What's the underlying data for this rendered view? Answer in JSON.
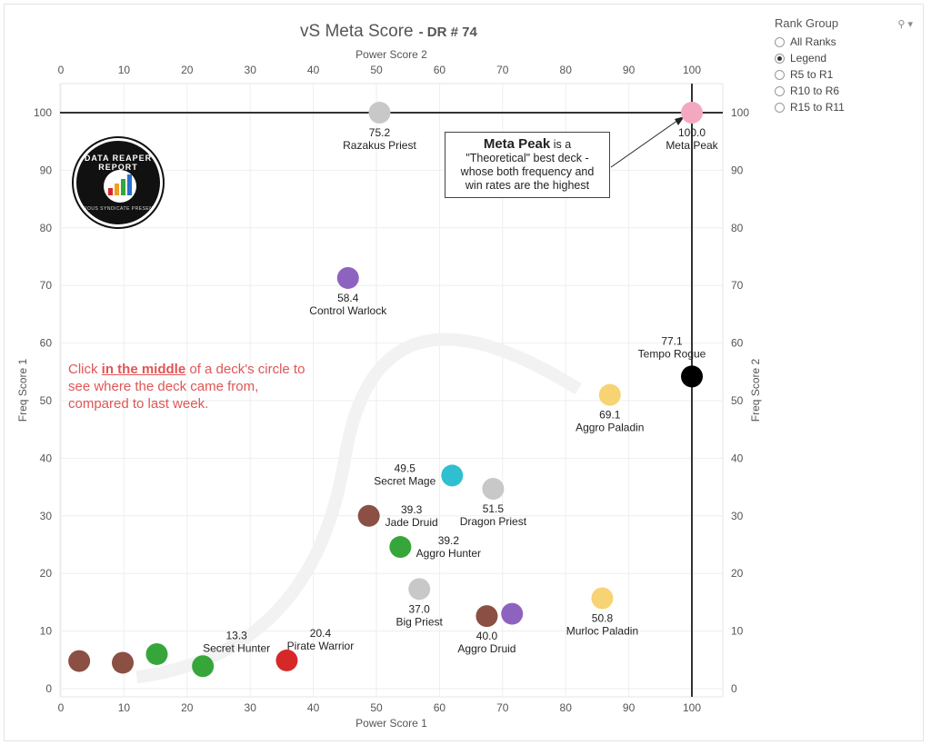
{
  "title": {
    "main": "vS Meta Score",
    "sub": "- DR # 74"
  },
  "filter": {
    "title": "Rank Group",
    "options": [
      {
        "label": "All Ranks",
        "checked": false
      },
      {
        "label": "Legend",
        "checked": true
      },
      {
        "label": "R5 to R1",
        "checked": false
      },
      {
        "label": "R10 to R6",
        "checked": false
      },
      {
        "label": "R15 to R11",
        "checked": false
      }
    ]
  },
  "logo": {
    "top_text": "DATA REAPER REPORT",
    "bottom_text": "VICIOUS SYNDICATE PRESENTS"
  },
  "annotation": {
    "strong": "Meta Peak",
    "text": "is a \"Theoretical\" best deck - whose both frequency and win rates are the highest"
  },
  "instruction": {
    "before": "Click ",
    "emph": "in the middle",
    "after": " of a deck's circle to see where the deck came from, compared to last week."
  },
  "chart_data": {
    "type": "scatter",
    "title": "vS Meta Score - DR # 74",
    "xlabel": "Power Score 1",
    "ylabel": "Freq Score 1",
    "x2label": "Power Score 2",
    "y2label": "Freq Score 2",
    "xlim": [
      -0.5,
      105.5
    ],
    "ylim": [
      -1,
      102
    ],
    "xticks": [
      0,
      10,
      20,
      30,
      40,
      50,
      60,
      70,
      80,
      90,
      100
    ],
    "yticks": [
      0,
      10,
      20,
      30,
      40,
      50,
      60,
      70,
      80,
      90,
      100
    ],
    "grid": true,
    "reference_lines": {
      "x": 100,
      "y": 100
    },
    "points": [
      {
        "name": "Meta Peak",
        "score": "100.0",
        "x": 100,
        "y": 100,
        "color": "#f4a8c0",
        "label_pos": "below"
      },
      {
        "name": "Razakus Priest",
        "score": "75.2",
        "x": 50.5,
        "y": 100,
        "color": "#c8c8c8",
        "label_pos": "below"
      },
      {
        "name": "Control Warlock",
        "score": "58.4",
        "x": 45.5,
        "y": 71.3,
        "color": "#8e63c0",
        "label_pos": "below"
      },
      {
        "name": "Tempo Rogue",
        "score": "77.1",
        "x": 100,
        "y": 54.2,
        "color": "#000000",
        "label_pos": "above"
      },
      {
        "name": "Aggro Paladin",
        "score": "69.1",
        "x": 87,
        "y": 51,
        "color": "#f7d374",
        "label_pos": "below"
      },
      {
        "name": "Secret Mage",
        "score": "49.5",
        "x": 62,
        "y": 37,
        "color": "#2fbfd0",
        "label_pos": "left"
      },
      {
        "name": "Dragon Priest",
        "score": "51.5",
        "x": 68.5,
        "y": 34.7,
        "color": "#c8c8c8",
        "label_pos": "below"
      },
      {
        "name": "Jade Druid",
        "score": "39.3",
        "x": 48.8,
        "y": 30,
        "color": "#8b4f43",
        "label_pos": "below-right"
      },
      {
        "name": "Aggro Hunter",
        "score": "39.2",
        "x": 53.8,
        "y": 24.6,
        "color": "#36a63a",
        "label_pos": "above-right"
      },
      {
        "name": "Big Priest",
        "score": "37.0",
        "x": 56.8,
        "y": 17.3,
        "color": "#c8c8c8",
        "label_pos": "below"
      },
      {
        "name": "Aggro Druid",
        "score": "40.0",
        "x": 67.5,
        "y": 12.6,
        "color": "#8b4f43",
        "label_pos": "below"
      },
      {
        "name": "",
        "score": "",
        "x": 71.5,
        "y": 13,
        "color": "#8e63c0",
        "label_pos": "none"
      },
      {
        "name": "Murloc Paladin",
        "score": "50.8",
        "x": 85.8,
        "y": 15.7,
        "color": "#f7d374",
        "label_pos": "below"
      },
      {
        "name": "Pirate Warrior",
        "score": "20.4",
        "x": 35.8,
        "y": 4.9,
        "color": "#d62828",
        "label_pos": "above-right"
      },
      {
        "name": "Secret Hunter",
        "score": "13.3",
        "x": 22.5,
        "y": 3.9,
        "color": "#36a63a",
        "label_pos": "above-right"
      },
      {
        "name": "",
        "score": "",
        "x": 15.2,
        "y": 6,
        "color": "#36a63a",
        "label_pos": "none"
      },
      {
        "name": "",
        "score": "",
        "x": 9.8,
        "y": 4.5,
        "color": "#8b4f43",
        "label_pos": "none"
      },
      {
        "name": "",
        "score": "",
        "x": 2.9,
        "y": 4.8,
        "color": "#8b4f43",
        "label_pos": "none"
      }
    ]
  }
}
